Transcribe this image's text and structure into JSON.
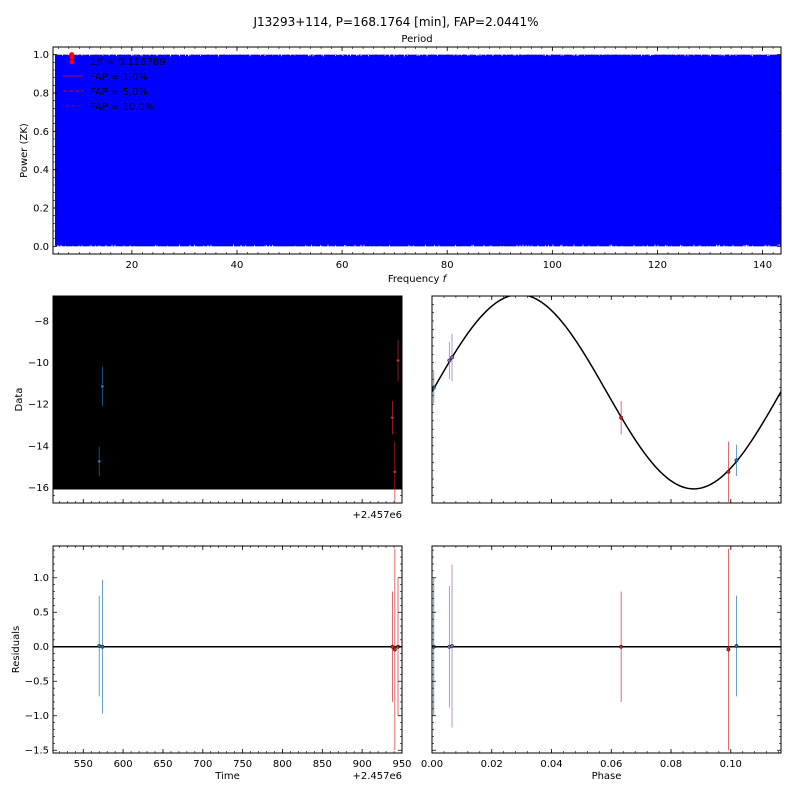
{
  "figure": {
    "title": "J13293+114, P=168.1764 [min], FAP=2.0441%"
  },
  "chart_data": [
    {
      "id": "periodogram",
      "type": "line",
      "title": "Period",
      "xlabel": "Frequency $f$",
      "ylabel": "Power (ZK)",
      "xlim": [
        5.0,
        143.5
      ],
      "ylim": [
        -0.04,
        1.04
      ],
      "xticks": [
        20,
        40,
        60,
        80,
        100,
        120,
        140
      ],
      "yticks": [
        0.0,
        0.2,
        0.4,
        0.6,
        0.8,
        1.0
      ],
      "ytick_labels": [
        "0.0",
        "0.2",
        "0.4",
        "0.6",
        "0.8",
        "1.0"
      ],
      "fill_range": [
        0.0,
        1.0
      ],
      "line_color": "#0000ff",
      "peak_marker": {
        "x": 8.56,
        "y": 1.0,
        "color": "#ff0000"
      },
      "legend": {
        "location": "upper-left",
        "entries": [
          {
            "label": "1/f = 0.116789",
            "style": "marker",
            "color": "#ff0000"
          },
          {
            "label": "FAP = 1.0%",
            "style": "solid",
            "color": "#ff0000"
          },
          {
            "label": "FAP = 5.0%",
            "style": "dashed",
            "color": "#ff0000"
          },
          {
            "label": "FAP = 10.0%",
            "style": "dotted",
            "color": "#ff0000"
          }
        ]
      }
    },
    {
      "id": "data-vs-time",
      "type": "scatter",
      "ylabel": "Data",
      "xlim": [
        2457512,
        2457950
      ],
      "ylim": [
        -16.75,
        -6.8
      ],
      "offset_text": "+2.457e6",
      "yticks": [
        -16,
        -14,
        -12,
        -10,
        -8
      ],
      "ytick_labels": [
        "−16",
        "−14",
        "−12",
        "−10",
        "−8"
      ],
      "background": "#000000",
      "background_ylim": [
        -16.1,
        -6.8
      ],
      "points": [
        {
          "x": 2457570.0,
          "y": -14.75,
          "err": 0.7,
          "color": "#1f77b4"
        },
        {
          "x": 2457574.0,
          "y": -11.15,
          "err": 0.95,
          "color": "#1f77b4"
        },
        {
          "x": 2457938.0,
          "y": -12.65,
          "err": 0.8,
          "color": "#d62728"
        },
        {
          "x": 2457941.0,
          "y": -15.25,
          "err": 1.45,
          "color": "#d62728"
        },
        {
          "x": 2457945.0,
          "y": -9.9,
          "err": 1.0,
          "color": "#d62728"
        }
      ]
    },
    {
      "id": "data-vs-phase",
      "type": "scatter",
      "xlim": [
        0.0,
        0.1168
      ],
      "ylim": [
        -16.75,
        -6.8
      ],
      "model_curve": {
        "type": "sinusoid",
        "mean": -11.4,
        "amplitude": 4.67,
        "period": 0.116789,
        "peak_phase": 0.0292,
        "color": "#000000"
      },
      "points": [
        {
          "x": 0.0006,
          "y": -11.2,
          "err": 0.75,
          "color": "#1f77b4"
        },
        {
          "x": 0.0058,
          "y": -9.9,
          "err": 0.9,
          "color": "#9467bd"
        },
        {
          "x": 0.0067,
          "y": -9.75,
          "err": 1.15,
          "color": "#9467bd"
        },
        {
          "x": 0.0633,
          "y": -12.65,
          "err": 0.8,
          "color": "#d62728"
        },
        {
          "x": 0.0992,
          "y": -15.25,
          "err": 1.45,
          "color": "#d62728"
        },
        {
          "x": 0.1019,
          "y": -14.7,
          "err": 0.75,
          "color": "#1f77b4"
        }
      ]
    },
    {
      "id": "residuals-vs-time",
      "type": "scatter",
      "xlabel": "Time",
      "ylabel": "Residuals",
      "xlim": [
        2457512,
        2457950
      ],
      "ylim": [
        -1.54,
        1.46
      ],
      "offset_text": "+2.457e6",
      "xticks": [
        550,
        600,
        650,
        700,
        750,
        800,
        850,
        900,
        950
      ],
      "xtick_labels": [
        "550",
        "600",
        "650",
        "700",
        "750",
        "800",
        "850",
        "900",
        "950"
      ],
      "yticks": [
        -1.5,
        -1.0,
        -0.5,
        0.0,
        0.5,
        1.0
      ],
      "ytick_labels": [
        "−1.5",
        "−1.0",
        "−0.5",
        "0.0",
        "0.5",
        "1.0"
      ],
      "zero_line": true,
      "points": [
        {
          "x": 2457570.0,
          "y": 0.01,
          "err": 0.73,
          "color": "#1f77b4"
        },
        {
          "x": 2457574.0,
          "y": 0.0,
          "err": 0.97,
          "color": "#1f77b4"
        },
        {
          "x": 2457938.0,
          "y": 0.0,
          "err": 0.8,
          "color": "#d62728"
        },
        {
          "x": 2457941.0,
          "y": -0.04,
          "err": 1.46,
          "color": "#d62728"
        },
        {
          "x": 2457945.0,
          "y": 0.0,
          "err": 1.0,
          "color": "#d62728"
        }
      ]
    },
    {
      "id": "residuals-vs-phase",
      "type": "scatter",
      "xlabel": "Phase",
      "xlim": [
        0.0,
        0.1168
      ],
      "ylim": [
        -1.54,
        1.46
      ],
      "xticks": [
        0.0,
        0.02,
        0.04,
        0.06,
        0.08,
        0.1
      ],
      "xtick_labels": [
        "0.00",
        "0.02",
        "0.04",
        "0.06",
        "0.08",
        "0.10"
      ],
      "zero_line": true,
      "points": [
        {
          "x": 0.0006,
          "y": 0.0,
          "err": 1.0,
          "color": "#1f77b4"
        },
        {
          "x": 0.0058,
          "y": 0.0,
          "err": 0.88,
          "color": "#9467bd"
        },
        {
          "x": 0.0067,
          "y": 0.01,
          "err": 1.18,
          "color": "#9467bd"
        },
        {
          "x": 0.0633,
          "y": 0.0,
          "err": 0.8,
          "color": "#d62728"
        },
        {
          "x": 0.0992,
          "y": -0.04,
          "err": 1.46,
          "color": "#d62728"
        },
        {
          "x": 0.1019,
          "y": 0.01,
          "err": 0.73,
          "color": "#1f77b4"
        }
      ]
    }
  ]
}
